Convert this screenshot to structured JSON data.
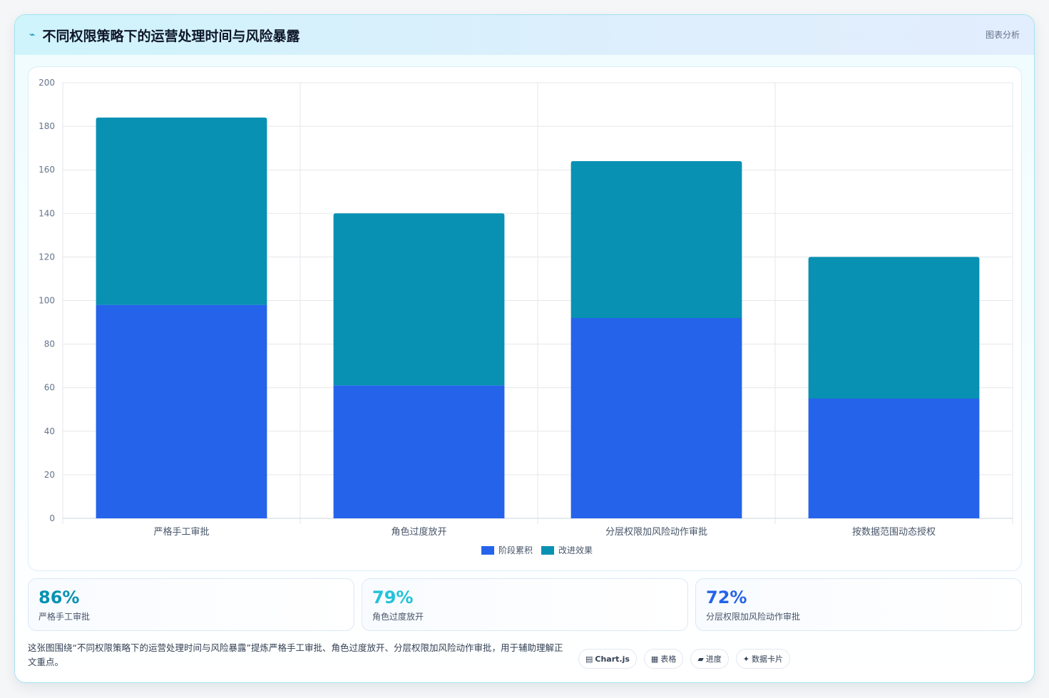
{
  "header": {
    "icon": "⌁",
    "title": "不同权限策略下的运营处理时间与风险暴露",
    "tag": "图表分析"
  },
  "chart_data": {
    "type": "bar",
    "stacked": true,
    "categories": [
      "严格手工审批",
      "角色过度放开",
      "分层权限加风险动作审批",
      "按数据范围动态授权"
    ],
    "series": [
      {
        "name": "阶段累积",
        "color": "#2563eb",
        "values": [
          98,
          61,
          92,
          55
        ]
      },
      {
        "name": "改进效果",
        "color": "#0891b2",
        "values": [
          86,
          79,
          72,
          65
        ]
      }
    ],
    "ylim": [
      0,
      200
    ],
    "yticks": [
      0,
      20,
      40,
      60,
      80,
      100,
      120,
      140,
      160,
      180,
      200
    ],
    "grid": true,
    "legend_position": "bottom"
  },
  "stats": [
    {
      "value": "86%",
      "label": "严格手工审批",
      "color": "#0891b2"
    },
    {
      "value": "79%",
      "label": "角色过度放开",
      "color": "#22c3d8"
    },
    {
      "value": "72%",
      "label": "分层权限加风险动作审批",
      "color": "#2563eb"
    }
  ],
  "footer": {
    "text": "这张图围绕“不同权限策略下的运营处理时间与风险暴露”提炼严格手工审批、角色过度放开、分层权限加风险动作审批，用于辅助理解正文重点。",
    "chips": [
      {
        "icon": "▤",
        "label": "Chart.js"
      },
      {
        "icon": "▦",
        "label": "表格"
      },
      {
        "icon": "▰",
        "label": "进度"
      },
      {
        "icon": "✦",
        "label": "数据卡片"
      }
    ]
  }
}
